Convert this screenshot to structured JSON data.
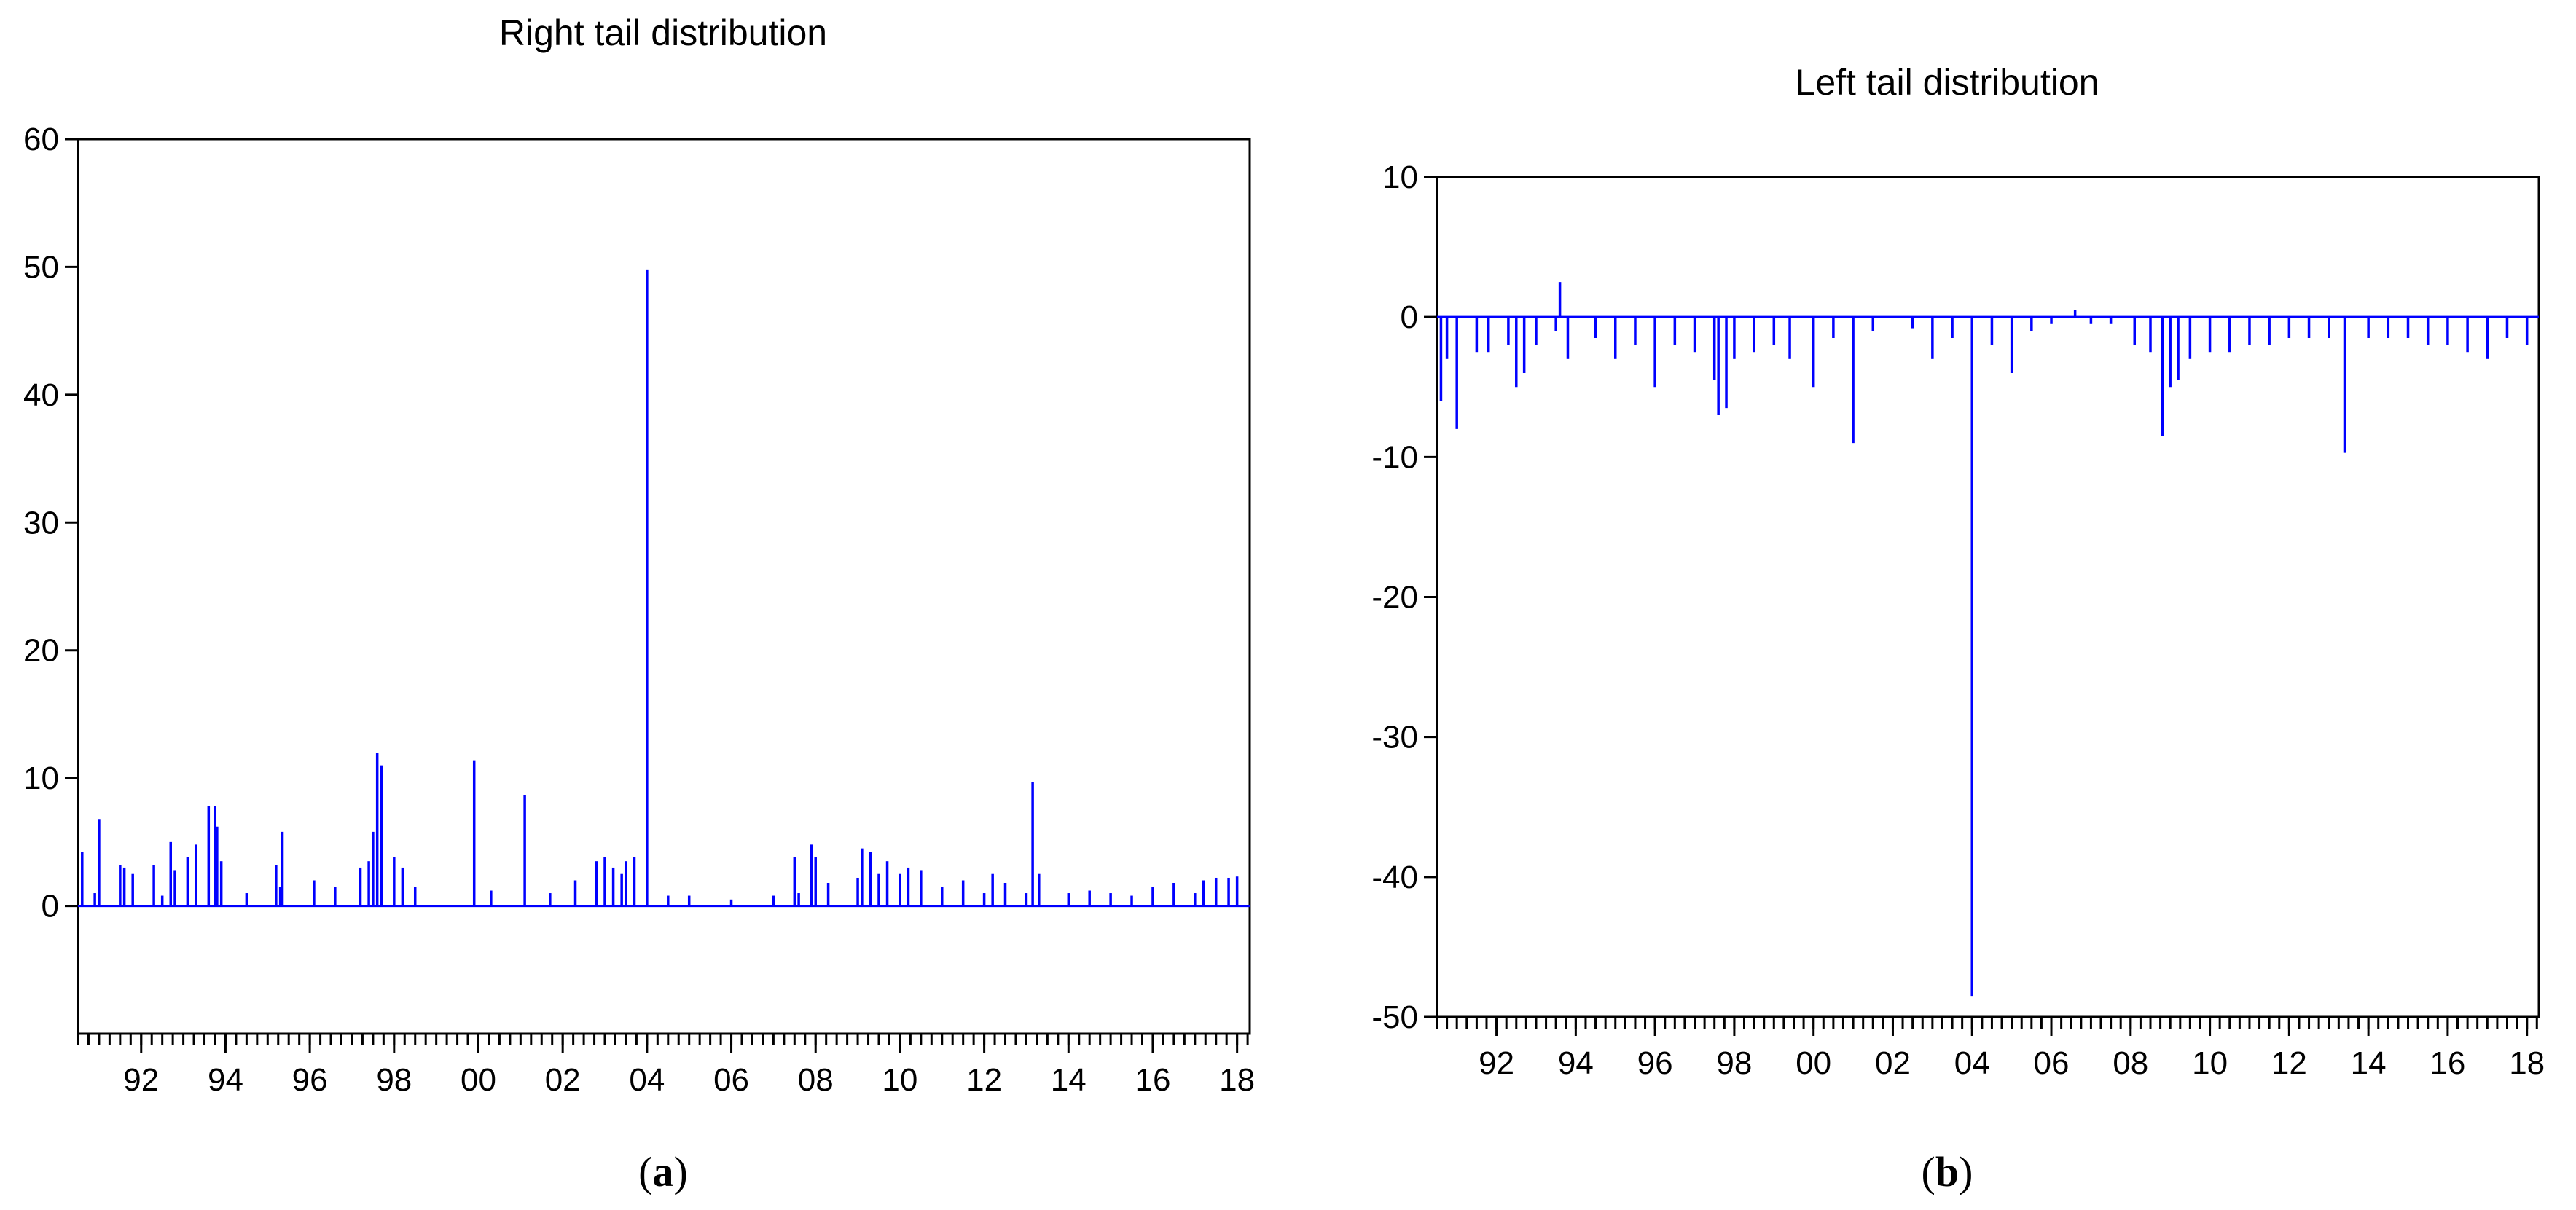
{
  "figure": {
    "panels": [
      {
        "id": "a",
        "title": "Right tail distribution",
        "caption_letter": "a",
        "y_ticks": [
          "60",
          "50",
          "40",
          "30",
          "20",
          "10",
          "0"
        ],
        "x_ticks": [
          "92",
          "94",
          "96",
          "98",
          "00",
          "02",
          "04",
          "06",
          "08",
          "10",
          "12",
          "14",
          "16",
          "18"
        ]
      },
      {
        "id": "b",
        "title": "Left tail distribution",
        "caption_letter": "b",
        "y_ticks": [
          "10",
          "0",
          "-10",
          "-20",
          "-30",
          "-40",
          "-50"
        ],
        "x_ticks": [
          "92",
          "94",
          "96",
          "98",
          "00",
          "02",
          "04",
          "06",
          "08",
          "10",
          "12",
          "14",
          "16",
          "18"
        ]
      }
    ]
  },
  "chart_data": [
    {
      "type": "bar",
      "title": "Right tail distribution",
      "xlabel": "",
      "ylabel": "",
      "x_unit": "year",
      "xlim": [
        1990.5,
        2018.3
      ],
      "ylim": [
        -10,
        60
      ],
      "y_ticks": [
        0,
        10,
        20,
        30,
        40,
        50,
        60
      ],
      "x_tick_labels": [
        "92",
        "94",
        "96",
        "98",
        "00",
        "02",
        "04",
        "06",
        "08",
        "10",
        "12",
        "14",
        "16",
        "18"
      ],
      "grid": false,
      "legend": "none",
      "color": "#0000ff",
      "x": [
        1990.6,
        1990.9,
        1991.0,
        1991.5,
        1991.6,
        1991.8,
        1992.3,
        1992.5,
        1992.7,
        1992.8,
        1993.1,
        1993.3,
        1993.6,
        1993.75,
        1993.8,
        1993.9,
        1994.5,
        1995.2,
        1995.3,
        1995.35,
        1996.1,
        1996.6,
        1997.2,
        1997.4,
        1997.5,
        1997.6,
        1997.7,
        1998.0,
        1998.2,
        1998.5,
        1999.9,
        2000.3,
        2001.1,
        2001.7,
        2002.3,
        2002.8,
        2003.0,
        2003.2,
        2003.4,
        2003.5,
        2003.7,
        2004.0,
        2004.5,
        2005.0,
        2006.0,
        2007.0,
        2007.5,
        2007.6,
        2007.9,
        2008.0,
        2008.3,
        2009.0,
        2009.1,
        2009.3,
        2009.5,
        2009.7,
        2010.0,
        2010.2,
        2010.5,
        2011.0,
        2011.5,
        2012.0,
        2012.2,
        2012.5,
        2013.0,
        2013.15,
        2013.3,
        2014.0,
        2014.5,
        2015.0,
        2015.5,
        2016.0,
        2016.5,
        2017.0,
        2017.2,
        2017.5,
        2017.8,
        2018.0
      ],
      "values": [
        4.2,
        1.0,
        6.8,
        3.2,
        3.0,
        2.5,
        3.2,
        0.8,
        5.0,
        2.8,
        3.8,
        4.8,
        7.8,
        7.8,
        6.2,
        3.5,
        1.0,
        3.2,
        1.5,
        5.8,
        2.0,
        1.5,
        3.0,
        3.5,
        5.8,
        12.0,
        11.0,
        3.8,
        3.0,
        1.5,
        11.4,
        1.2,
        8.7,
        1.0,
        2.0,
        3.5,
        3.8,
        3.0,
        2.5,
        3.5,
        3.8,
        49.8,
        0.8,
        0.8,
        0.5,
        0.8,
        3.8,
        1.0,
        4.8,
        3.8,
        1.8,
        2.2,
        4.5,
        4.2,
        2.5,
        3.5,
        2.5,
        3.0,
        2.8,
        1.5,
        2.0,
        1.0,
        2.5,
        1.8,
        1.0,
        9.7,
        2.5,
        1.0,
        1.2,
        1.0,
        0.8,
        1.5,
        1.8,
        1.0,
        2.0,
        2.2,
        2.2,
        2.3
      ]
    },
    {
      "type": "bar",
      "title": "Left tail distribution",
      "xlabel": "",
      "ylabel": "",
      "x_unit": "year",
      "xlim": [
        1990.5,
        2018.3
      ],
      "ylim": [
        -50,
        10
      ],
      "y_ticks": [
        -50,
        -40,
        -30,
        -20,
        -10,
        0,
        10
      ],
      "x_tick_labels": [
        "92",
        "94",
        "96",
        "98",
        "00",
        "02",
        "04",
        "06",
        "08",
        "10",
        "12",
        "14",
        "16",
        "18"
      ],
      "grid": false,
      "legend": "none",
      "color": "#0000ff",
      "x": [
        1990.6,
        1990.75,
        1991.0,
        1991.5,
        1991.8,
        1992.3,
        1992.5,
        1992.7,
        1993.0,
        1993.5,
        1993.6,
        1993.8,
        1994.5,
        1995.0,
        1995.5,
        1996.0,
        1996.5,
        1997.0,
        1997.5,
        1997.6,
        1997.8,
        1998.0,
        1998.5,
        1999.0,
        1999.4,
        2000.0,
        2000.5,
        2001.0,
        2001.5,
        2002.5,
        2003.0,
        2003.5,
        2004.0,
        2004.5,
        2005.0,
        2005.5,
        2006.0,
        2006.6,
        2007.0,
        2007.5,
        2008.1,
        2008.5,
        2008.8,
        2009.0,
        2009.2,
        2009.5,
        2010.0,
        2010.5,
        2011.0,
        2011.5,
        2012.0,
        2012.5,
        2013.0,
        2013.4,
        2014.0,
        2014.5,
        2015.0,
        2015.5,
        2016.0,
        2016.5,
        2017.0,
        2017.5,
        2018.0
      ],
      "values": [
        -6.0,
        -3.0,
        -8.0,
        -2.5,
        -2.5,
        -2.0,
        -5.0,
        -4.0,
        -2.0,
        -1.0,
        2.5,
        -3.0,
        -1.5,
        -3.0,
        -2.0,
        -5.0,
        -2.0,
        -2.5,
        -4.5,
        -7.0,
        -6.5,
        -3.0,
        -2.5,
        -2.0,
        -3.0,
        -5.0,
        -1.5,
        -9.0,
        -1.0,
        -0.8,
        -3.0,
        -1.5,
        -48.5,
        -2.0,
        -4.0,
        -1.0,
        -0.5,
        0.5,
        -0.5,
        -0.5,
        -2.0,
        -2.5,
        -8.5,
        -5.0,
        -4.5,
        -3.0,
        -2.5,
        -2.5,
        -2.0,
        -2.0,
        -1.5,
        -1.5,
        -1.5,
        -9.7,
        -1.5,
        -1.5,
        -1.5,
        -2.0,
        -2.0,
        -2.5,
        -3.0,
        -1.5,
        -2.0
      ]
    }
  ]
}
